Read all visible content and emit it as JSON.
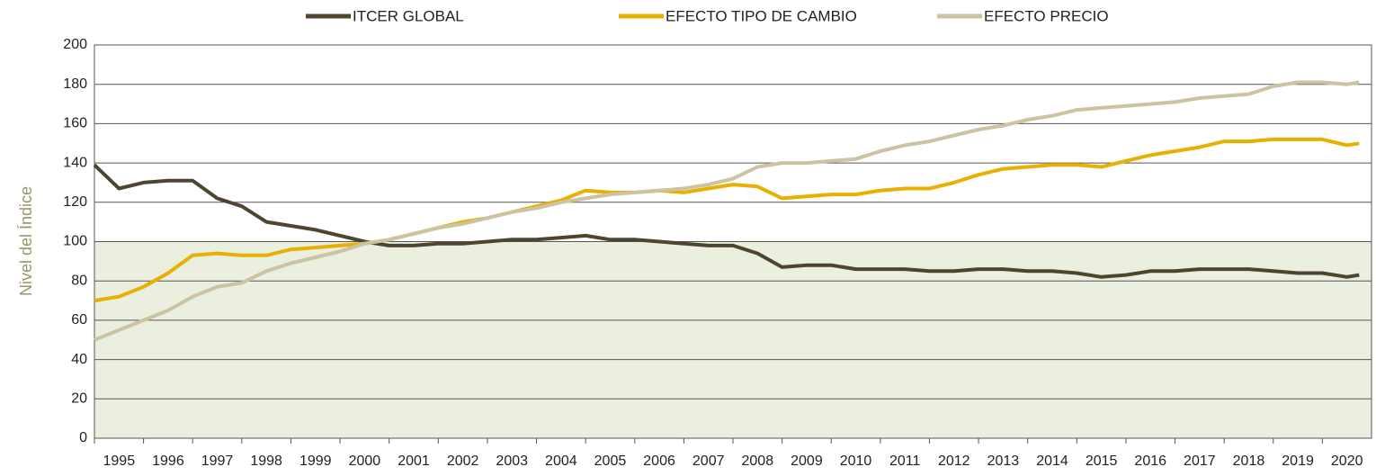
{
  "chart_data": {
    "type": "line",
    "ylabel": "Nivel del Índice",
    "x": [
      1995.0,
      1995.5,
      1996.0,
      1996.5,
      1997.0,
      1997.5,
      1998.0,
      1998.5,
      1999.0,
      1999.5,
      2000.0,
      2000.5,
      2001.0,
      2001.5,
      2002.0,
      2002.5,
      2003.0,
      2003.5,
      2004.0,
      2004.5,
      2005.0,
      2005.5,
      2006.0,
      2006.5,
      2007.0,
      2007.5,
      2008.0,
      2008.5,
      2009.0,
      2009.5,
      2010.0,
      2010.5,
      2011.0,
      2011.5,
      2012.0,
      2012.5,
      2013.0,
      2013.5,
      2014.0,
      2014.5,
      2015.0,
      2015.5,
      2016.0,
      2016.5,
      2017.0,
      2017.5,
      2018.0,
      2018.5,
      2019.0,
      2019.5,
      2020.0,
      2020.5,
      2020.75
    ],
    "series": [
      {
        "name": "ITCER GLOBAL",
        "color": "#4d4530",
        "values": [
          139,
          127,
          130,
          131,
          131,
          122,
          118,
          110,
          108,
          106,
          103,
          100,
          98,
          98,
          99,
          99,
          100,
          101,
          101,
          102,
          103,
          101,
          101,
          100,
          99,
          98,
          98,
          94,
          87,
          88,
          88,
          86,
          86,
          86,
          85,
          85,
          86,
          86,
          85,
          85,
          84,
          82,
          83,
          85,
          85,
          86,
          86,
          86,
          85,
          84,
          84,
          82,
          83
        ]
      },
      {
        "name": "EFECTO TIPO DE CAMBIO",
        "color": "#e8b000",
        "values": [
          70,
          72,
          77,
          84,
          93,
          94,
          93,
          93,
          96,
          97,
          98,
          99,
          101,
          104,
          107,
          110,
          112,
          115,
          118,
          121,
          126,
          125,
          125,
          126,
          125,
          127,
          129,
          128,
          122,
          123,
          124,
          124,
          126,
          127,
          127,
          130,
          134,
          137,
          138,
          139,
          139,
          138,
          141,
          144,
          146,
          148,
          151,
          151,
          152,
          152,
          152,
          149,
          150
        ]
      },
      {
        "name": "EFECTO PRECIO",
        "color": "#cbc3a2",
        "values": [
          50,
          55,
          60,
          65,
          72,
          77,
          79,
          85,
          89,
          92,
          95,
          99,
          101,
          104,
          107,
          109,
          112,
          115,
          117,
          120,
          122,
          124,
          125,
          126,
          127,
          129,
          132,
          138,
          140,
          140,
          141,
          142,
          146,
          149,
          151,
          154,
          157,
          159,
          162,
          164,
          167,
          168,
          169,
          170,
          171,
          173,
          174,
          175,
          179,
          181,
          181,
          180,
          181
        ]
      }
    ],
    "xlim": [
      1995,
      2021
    ],
    "xticks": [
      1995,
      1996,
      1997,
      1998,
      1999,
      2000,
      2001,
      2002,
      2003,
      2004,
      2005,
      2006,
      2007,
      2008,
      2009,
      2010,
      2011,
      2012,
      2013,
      2014,
      2015,
      2016,
      2017,
      2018,
      2019,
      2020
    ],
    "ylim": [
      0,
      200
    ],
    "yticks": [
      0,
      20,
      40,
      60,
      80,
      100,
      120,
      140,
      160,
      180,
      200
    ],
    "grid": true,
    "shade_range": [
      0,
      100
    ],
    "shade_color": "#eaefdf",
    "legend": "top"
  }
}
